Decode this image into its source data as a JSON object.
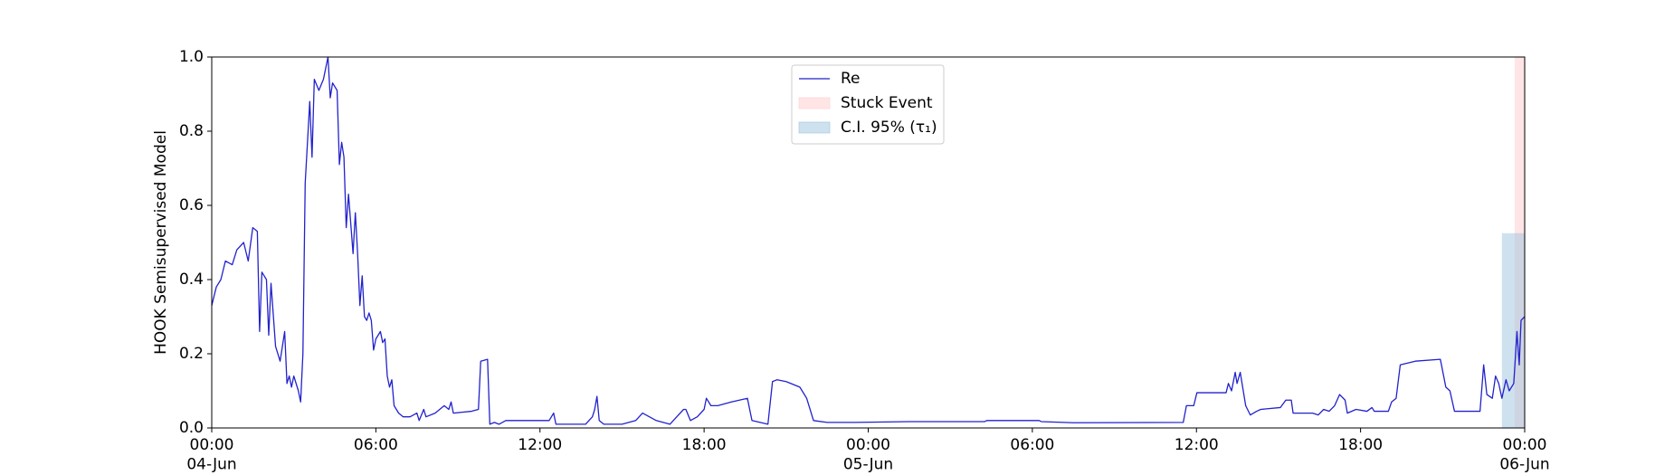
{
  "chart_data": {
    "type": "line",
    "y_label": "HOOK Semisupervised Model",
    "x": [
      "1900-06-04 00:00",
      "1900-06-04 00:10",
      "1900-06-04 00:20",
      "1900-06-04 00:30",
      "1900-06-04 00:45",
      "1900-06-04 00:55",
      "1900-06-04 01:10",
      "1900-06-04 01:20",
      "1900-06-04 01:30",
      "1900-06-04 01:40",
      "1900-06-04 01:45",
      "1900-06-04 01:50",
      "1900-06-04 02:00",
      "1900-06-04 02:05",
      "1900-06-04 02:10",
      "1900-06-04 02:20",
      "1900-06-04 02:30",
      "1900-06-04 02:40",
      "1900-06-04 02:45",
      "1900-06-04 02:50",
      "1900-06-04 02:55",
      "1900-06-04 03:00",
      "1900-06-04 03:10",
      "1900-06-04 03:15",
      "1900-06-04 03:20",
      "1900-06-04 03:25",
      "1900-06-04 03:35",
      "1900-06-04 03:40",
      "1900-06-04 03:45",
      "1900-06-04 03:55",
      "1900-06-04 04:05",
      "1900-06-04 04:15",
      "1900-06-04 04:20",
      "1900-06-04 04:25",
      "1900-06-04 04:35",
      "1900-06-04 04:40",
      "1900-06-04 04:45",
      "1900-06-04 04:50",
      "1900-06-04 04:55",
      "1900-06-04 05:00",
      "1900-06-04 05:10",
      "1900-06-04 05:15",
      "1900-06-04 05:20",
      "1900-06-04 05:25",
      "1900-06-04 05:30",
      "1900-06-04 05:35",
      "1900-06-04 05:40",
      "1900-06-04 05:45",
      "1900-06-04 05:50",
      "1900-06-04 05:55",
      "1900-06-04 06:00",
      "1900-06-04 06:10",
      "1900-06-04 06:15",
      "1900-06-04 06:20",
      "1900-06-04 06:25",
      "1900-06-04 06:30",
      "1900-06-04 06:35",
      "1900-06-04 06:40",
      "1900-06-04 06:50",
      "1900-06-04 07:00",
      "1900-06-04 07:15",
      "1900-06-04 07:30",
      "1900-06-04 07:35",
      "1900-06-04 07:45",
      "1900-06-04 07:50",
      "1900-06-04 08:10",
      "1900-06-04 08:30",
      "1900-06-04 08:40",
      "1900-06-04 08:45",
      "1900-06-04 08:50",
      "1900-06-04 09:30",
      "1900-06-04 09:45",
      "1900-06-04 09:50",
      "1900-06-04 10:05",
      "1900-06-04 10:10",
      "1900-06-04 10:20",
      "1900-06-04 10:30",
      "1900-06-04 10:45",
      "1900-06-04 11:30",
      "1900-06-04 12:20",
      "1900-06-04 12:30",
      "1900-06-04 12:35",
      "1900-06-04 13:00",
      "1900-06-04 13:40",
      "1900-06-04 13:55",
      "1900-06-04 14:00",
      "1900-06-04 14:05",
      "1900-06-04 14:10",
      "1900-06-04 14:20",
      "1900-06-04 15:00",
      "1900-06-04 15:30",
      "1900-06-04 15:45",
      "1900-06-04 16:00",
      "1900-06-04 16:15",
      "1900-06-04 16:45",
      "1900-06-04 17:00",
      "1900-06-04 17:15",
      "1900-06-04 17:20",
      "1900-06-04 17:30",
      "1900-06-04 17:45",
      "1900-06-04 18:00",
      "1900-06-04 18:05",
      "1900-06-04 18:15",
      "1900-06-04 18:30",
      "1900-06-04 19:00",
      "1900-06-04 19:35",
      "1900-06-04 19:45",
      "1900-06-04 20:20",
      "1900-06-04 20:30",
      "1900-06-04 20:40",
      "1900-06-04 21:00",
      "1900-06-04 21:30",
      "1900-06-04 21:45",
      "1900-06-04 22:00",
      "1900-06-04 22:30",
      "1900-06-04 23:30",
      "1900-06-05 01:30",
      "1900-06-05 04:15",
      "1900-06-05 04:20",
      "1900-06-05 06:15",
      "1900-06-05 06:20",
      "1900-06-05 07:30",
      "1900-06-05 11:31",
      "1900-06-05 11:38",
      "1900-06-05 11:54",
      "1900-06-05 12:01",
      "1900-06-05 13:05",
      "1900-06-05 13:10",
      "1900-06-05 13:17",
      "1900-06-05 13:25",
      "1900-06-05 13:29",
      "1900-06-05 13:36",
      "1900-06-05 13:48",
      "1900-06-05 13:58",
      "1900-06-05 14:12",
      "1900-06-05 14:21",
      "1900-06-05 15:04",
      "1900-06-05 15:16",
      "1900-06-05 15:28",
      "1900-06-05 15:32",
      "1900-06-05 16:15",
      "1900-06-05 16:27",
      "1900-06-05 16:39",
      "1900-06-05 16:51",
      "1900-06-05 17:03",
      "1900-06-05 17:14",
      "1900-06-05 17:26",
      "1900-06-05 17:31",
      "1900-06-05 17:50",
      "1900-06-05 18:14",
      "1900-06-05 18:25",
      "1900-06-05 18:30",
      "1900-06-05 19:01",
      "1900-06-05 19:08",
      "1900-06-05 19:18",
      "1900-06-05 19:27",
      "1900-06-05 20:00",
      "1900-06-05 20:55",
      "1900-06-05 21:07",
      "1900-06-05 21:16",
      "1900-06-05 21:26",
      "1900-06-05 22:22",
      "1900-06-05 22:30",
      "1900-06-05 22:37",
      "1900-06-05 22:49",
      "1900-06-05 22:56",
      "1900-06-05 23:03",
      "1900-06-05 23:10",
      "1900-06-05 23:19",
      "1900-06-05 23:26",
      "1900-06-05 23:36",
      "1900-06-05 23:43",
      "1900-06-05 23:48",
      "1900-06-05 23:52",
      "1900-06-06 00:00"
    ],
    "series": [
      {
        "name": "Re",
        "color": "#2222cc",
        "values": [
          0.33,
          0.38,
          0.4,
          0.45,
          0.44,
          0.48,
          0.5,
          0.45,
          0.54,
          0.53,
          0.26,
          0.42,
          0.4,
          0.25,
          0.39,
          0.22,
          0.18,
          0.26,
          0.12,
          0.14,
          0.11,
          0.14,
          0.1,
          0.07,
          0.2,
          0.66,
          0.88,
          0.73,
          0.94,
          0.91,
          0.94,
          1.0,
          0.89,
          0.93,
          0.91,
          0.71,
          0.77,
          0.73,
          0.54,
          0.63,
          0.47,
          0.58,
          0.47,
          0.33,
          0.41,
          0.3,
          0.29,
          0.31,
          0.29,
          0.21,
          0.24,
          0.26,
          0.23,
          0.24,
          0.14,
          0.11,
          0.13,
          0.06,
          0.04,
          0.03,
          0.03,
          0.04,
          0.02,
          0.05,
          0.03,
          0.04,
          0.06,
          0.05,
          0.07,
          0.04,
          0.045,
          0.05,
          0.18,
          0.185,
          0.01,
          0.015,
          0.01,
          0.02,
          0.02,
          0.02,
          0.04,
          0.01,
          0.01,
          0.01,
          0.03,
          0.05,
          0.085,
          0.02,
          0.01,
          0.01,
          0.02,
          0.04,
          0.03,
          0.02,
          0.01,
          0.03,
          0.05,
          0.05,
          0.02,
          0.03,
          0.05,
          0.08,
          0.06,
          0.06,
          0.07,
          0.08,
          0.02,
          0.01,
          0.125,
          0.13,
          0.125,
          0.11,
          0.08,
          0.02,
          0.015,
          0.015,
          0.017,
          0.017,
          0.02,
          0.02,
          0.017,
          0.014,
          0.015,
          0.06,
          0.06,
          0.095,
          0.095,
          0.12,
          0.1,
          0.15,
          0.12,
          0.15,
          0.06,
          0.035,
          0.045,
          0.05,
          0.055,
          0.075,
          0.075,
          0.04,
          0.04,
          0.035,
          0.05,
          0.045,
          0.06,
          0.09,
          0.075,
          0.04,
          0.05,
          0.045,
          0.055,
          0.045,
          0.045,
          0.07,
          0.08,
          0.17,
          0.18,
          0.185,
          0.11,
          0.1,
          0.045,
          0.045,
          0.17,
          0.09,
          0.08,
          0.14,
          0.12,
          0.08,
          0.13,
          0.1,
          0.12,
          0.26,
          0.17,
          0.29,
          0.3
        ]
      }
    ],
    "spans": [
      {
        "name": "Stuck Event",
        "color": "#ffcccc",
        "x": [
          "1900-06-05 23:38",
          "1900-06-06 00:00"
        ]
      },
      {
        "name": "C.I. 95% (τ₁)",
        "color": "#9ec3e0",
        "x": [
          "1900-06-05 23:10",
          "1900-06-06 00:00"
        ],
        "y": [
          0,
          0.525
        ]
      }
    ],
    "xlim": [
      "1900-06-04 00:00",
      "1900-06-06 00:00"
    ],
    "xticks": [
      {
        "value": "1900-06-04 00:00",
        "label": "00:00\n04-Jun\n1900"
      },
      {
        "value": "1900-06-04 06:00",
        "label": "06:00"
      },
      {
        "value": "1900-06-04 12:00",
        "label": "12:00"
      },
      {
        "value": "1900-06-04 18:00",
        "label": "18:00"
      },
      {
        "value": "1900-06-05 00:00",
        "label": "00:00\n05-Jun"
      },
      {
        "value": "1900-06-05 06:00",
        "label": "06:00"
      },
      {
        "value": "1900-06-05 12:00",
        "label": "12:00"
      },
      {
        "value": "1900-06-05 18:00",
        "label": "18:00"
      },
      {
        "value": "1900-06-06 00:00",
        "label": "00:00\n06-Jun"
      }
    ],
    "ylim": [
      0,
      1
    ],
    "yticks": [
      {
        "value": 0,
        "label": "0.0"
      },
      0.2,
      0.4,
      0.6,
      0.8,
      {
        "value": 1,
        "label": "1.0"
      }
    ],
    "legend": "upper center"
  }
}
